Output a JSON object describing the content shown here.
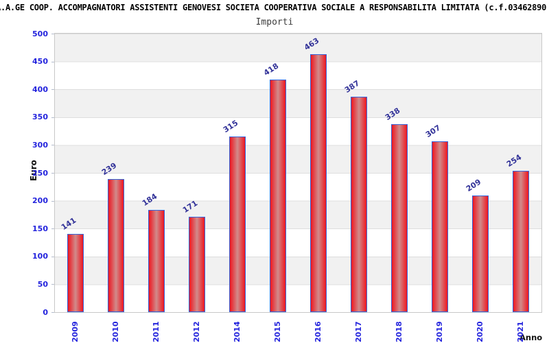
{
  "header": {
    "title": "A.A.GE COOP. ACCOMPAGNATORI ASSISTENTI GENOVESI SOCIETA COOPERATIVA SOCIALE A RESPONSABILITA LIMITATA (c.f.03462890",
    "subtitle": "Importi"
  },
  "chart_data": {
    "type": "bar",
    "title": "Importi",
    "categories": [
      "2009",
      "2010",
      "2011",
      "2012",
      "2014",
      "2015",
      "2016",
      "2017",
      "2018",
      "2019",
      "2020",
      "2021"
    ],
    "values": [
      141,
      239,
      184,
      171,
      315,
      418,
      463,
      387,
      338,
      307,
      209,
      254
    ],
    "xlabel": "Anno",
    "ylabel": "Euro",
    "ylim": [
      0,
      500
    ],
    "ytick_step": 50,
    "yticks": [
      0,
      50,
      100,
      150,
      200,
      250,
      300,
      350,
      400,
      450,
      500
    ],
    "grid": true,
    "legend": null,
    "layout_hints": {
      "bands": "alternating gray/white horizontal bands every 50 units, gray at top band",
      "value_labels": "rotated above each bar",
      "x_labels": "rotated 90deg, blue",
      "note": "year 2013 absent from series"
    },
    "colors": {
      "bar_edge": "#ee161f",
      "bar_center": "#d18b8b",
      "bar_border": "#3366dd",
      "axis_tick_label": "#2424dd",
      "value_label": "#333399",
      "band": "#f1f1f1",
      "gridline": "#dedede",
      "plot_border": "#c8c8c8",
      "title_color": "#000000",
      "subtitle_color": "#3d3d3d"
    }
  }
}
